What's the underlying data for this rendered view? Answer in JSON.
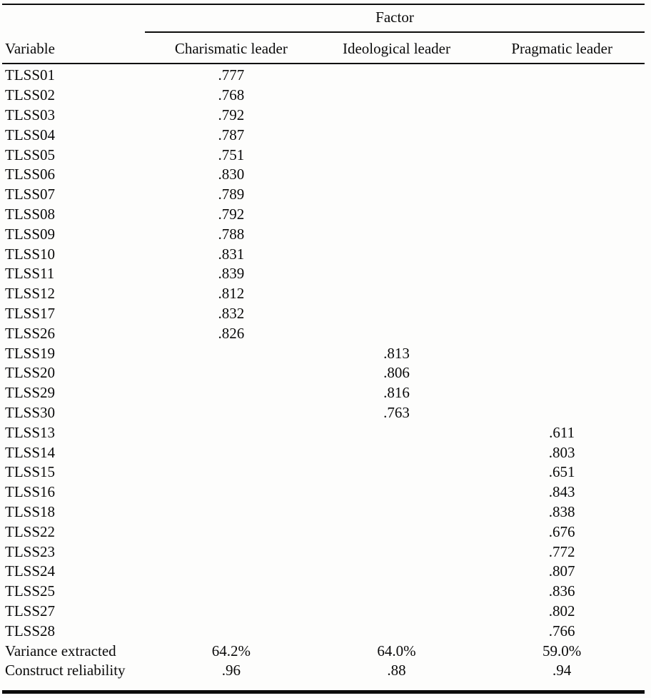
{
  "table": {
    "factor_group_header": "Factor",
    "columns": [
      "Variable",
      "Charismatic leader",
      "Ideological leader",
      "Pragmatic leader"
    ],
    "rows": [
      [
        "TLSS01",
        ".777",
        "",
        ""
      ],
      [
        "TLSS02",
        ".768",
        "",
        ""
      ],
      [
        "TLSS03",
        ".792",
        "",
        ""
      ],
      [
        "TLSS04",
        ".787",
        "",
        ""
      ],
      [
        "TLSS05",
        ".751",
        "",
        ""
      ],
      [
        "TLSS06",
        ".830",
        "",
        ""
      ],
      [
        "TLSS07",
        ".789",
        "",
        ""
      ],
      [
        "TLSS08",
        ".792",
        "",
        ""
      ],
      [
        "TLSS09",
        ".788",
        "",
        ""
      ],
      [
        "TLSS10",
        ".831",
        "",
        ""
      ],
      [
        "TLSS11",
        ".839",
        "",
        ""
      ],
      [
        "TLSS12",
        ".812",
        "",
        ""
      ],
      [
        "TLSS17",
        ".832",
        "",
        ""
      ],
      [
        "TLSS26",
        ".826",
        "",
        ""
      ],
      [
        "TLSS19",
        "",
        ".813",
        ""
      ],
      [
        "TLSS20",
        "",
        ".806",
        ""
      ],
      [
        "TLSS29",
        "",
        ".816",
        ""
      ],
      [
        "TLSS30",
        "",
        ".763",
        ""
      ],
      [
        "TLSS13",
        "",
        "",
        ".611"
      ],
      [
        "TLSS14",
        "",
        "",
        ".803"
      ],
      [
        "TLSS15",
        "",
        "",
        ".651"
      ],
      [
        "TLSS16",
        "",
        "",
        ".843"
      ],
      [
        "TLSS18",
        "",
        "",
        ".838"
      ],
      [
        "TLSS22",
        "",
        "",
        ".676"
      ],
      [
        "TLSS23",
        "",
        "",
        ".772"
      ],
      [
        "TLSS24",
        "",
        "",
        ".807"
      ],
      [
        "TLSS25",
        "",
        "",
        ".836"
      ],
      [
        "TLSS27",
        "",
        "",
        ".802"
      ],
      [
        "TLSS28",
        "",
        "",
        ".766"
      ]
    ],
    "summary_rows": [
      [
        "Variance extracted",
        "64.2%",
        "64.0%",
        "59.0%"
      ],
      [
        "Construct reliability",
        ".96",
        ".88",
        ".94"
      ]
    ],
    "colors": {
      "rule": "#0c0c0c",
      "text": "#0a0a0a",
      "background": "#fdfdfc"
    }
  }
}
